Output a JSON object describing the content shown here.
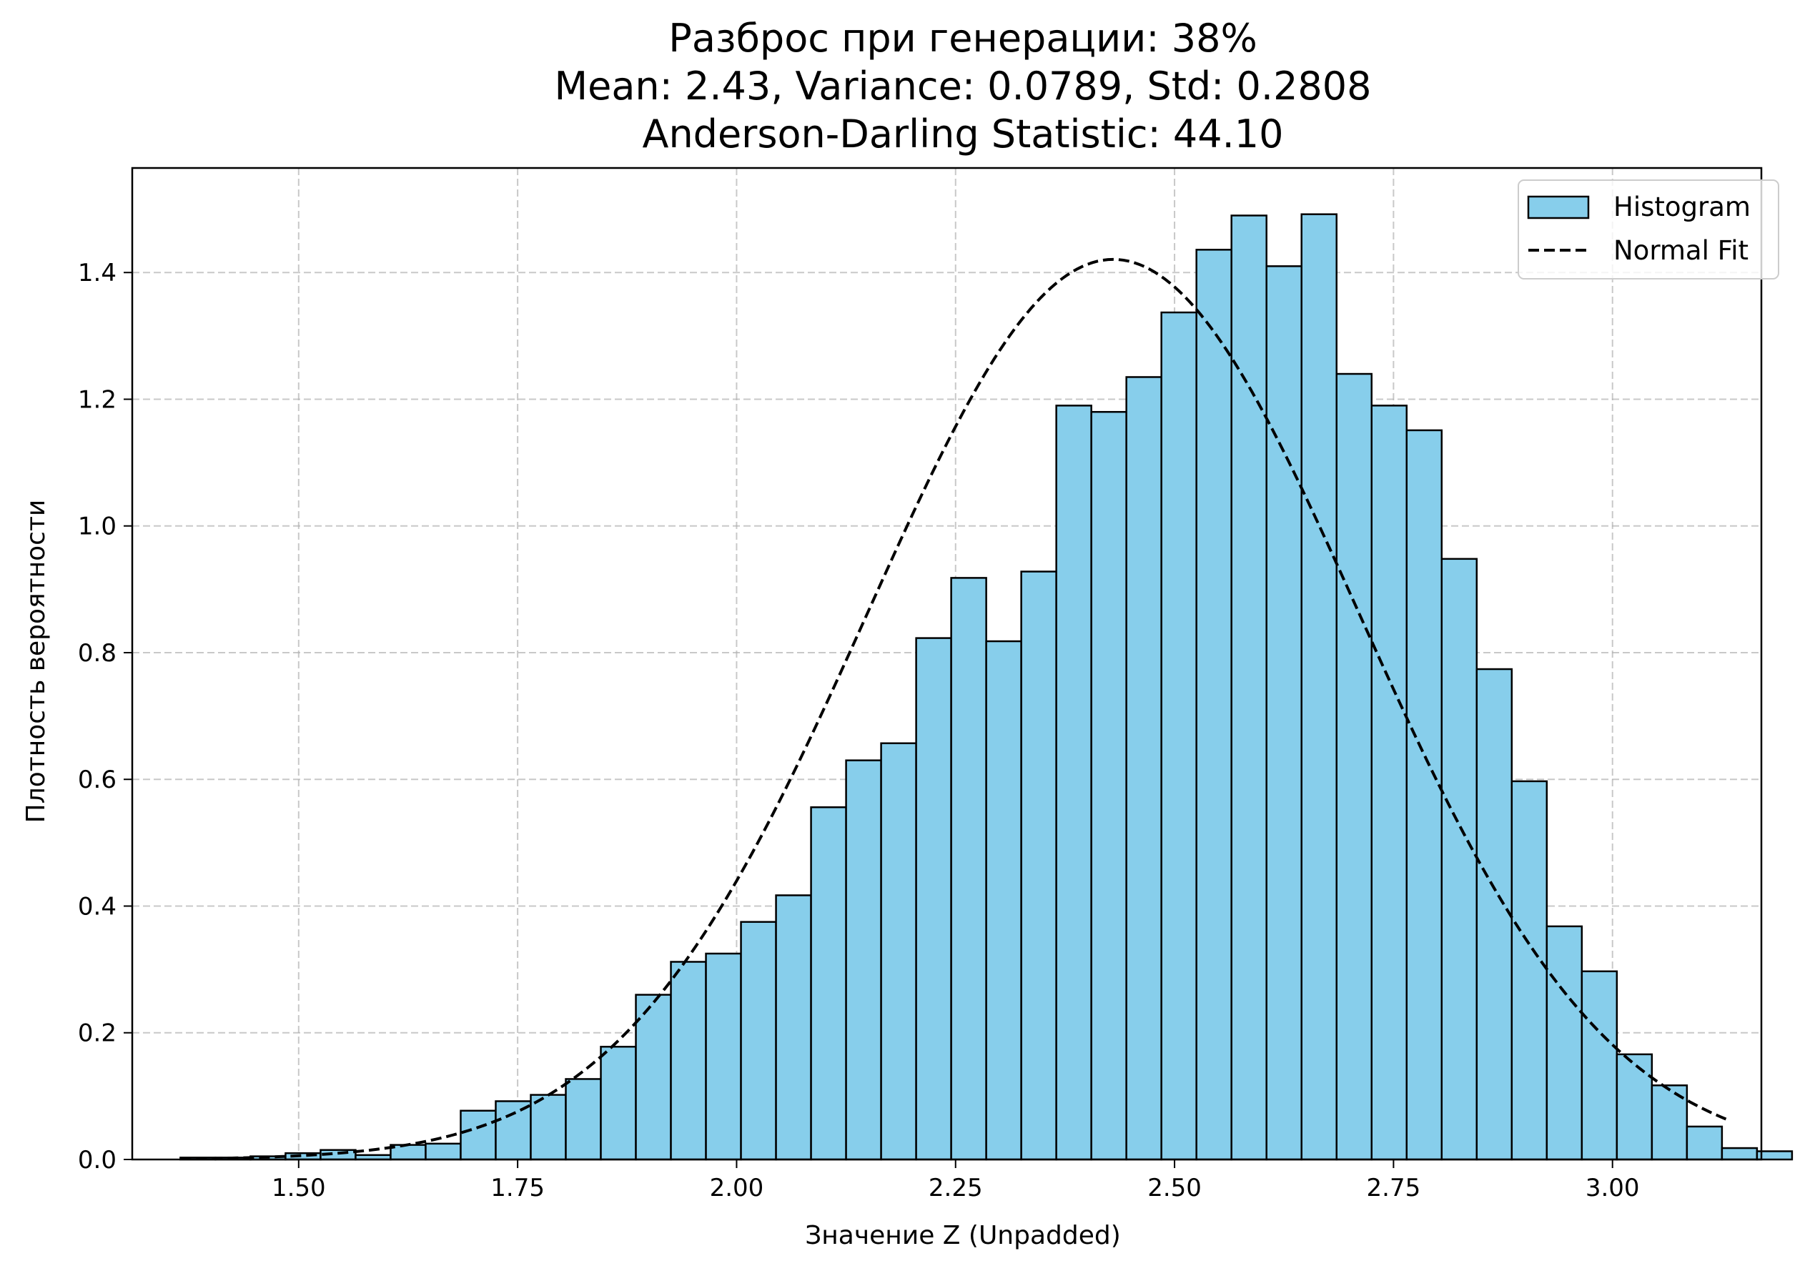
{
  "chart_data": {
    "type": "bar",
    "title_lines": [
      "Разброс при генерации: 38%",
      "Mean: 2.43, Variance: 0.0789, Std: 0.2808",
      "Anderson-Darling Statistic: 44.10"
    ],
    "xlabel": "Значение Z (Unpadded)",
    "ylabel": "Плотность вероятности",
    "xlim": [
      1.31,
      3.17
    ],
    "ylim": [
      0.0,
      1.565
    ],
    "x_ticks": [
      1.5,
      1.75,
      2.0,
      2.25,
      2.5,
      2.75,
      3.0
    ],
    "x_tick_labels": [
      "1.50",
      "1.75",
      "2.00",
      "2.25",
      "2.50",
      "2.75",
      "3.00"
    ],
    "y_ticks": [
      0.0,
      0.2,
      0.4,
      0.6,
      0.8,
      1.0,
      1.2,
      1.4
    ],
    "y_tick_labels": [
      "0.0",
      "0.2",
      "0.4",
      "0.6",
      "0.8",
      "1.0",
      "1.2",
      "1.4"
    ],
    "grid": true,
    "legend_position": "top-right",
    "bin_start": 1.365,
    "bin_width": 0.04,
    "histogram": {
      "name": "Histogram",
      "color": "#87ceeb",
      "edgecolor": "#000000",
      "values": [
        0.003,
        0.003,
        0.005,
        0.01,
        0.015,
        0.007,
        0.023,
        0.025,
        0.077,
        0.092,
        0.102,
        0.127,
        0.178,
        0.26,
        0.312,
        0.325,
        0.375,
        0.417,
        0.556,
        0.63,
        0.657,
        0.823,
        0.918,
        0.818,
        0.928,
        1.19,
        1.18,
        1.235,
        1.337,
        1.436,
        1.49,
        1.41,
        1.492,
        1.24,
        1.19,
        1.151,
        0.948,
        0.774,
        0.597,
        0.368,
        0.297,
        0.166,
        0.117,
        0.052,
        0.018,
        0.013
      ]
    },
    "normal_fit": {
      "name": "Normal Fit",
      "color": "#000000",
      "style": "dashed",
      "mean": 2.43,
      "std": 0.2808,
      "x_range": [
        1.365,
        3.13
      ]
    }
  }
}
